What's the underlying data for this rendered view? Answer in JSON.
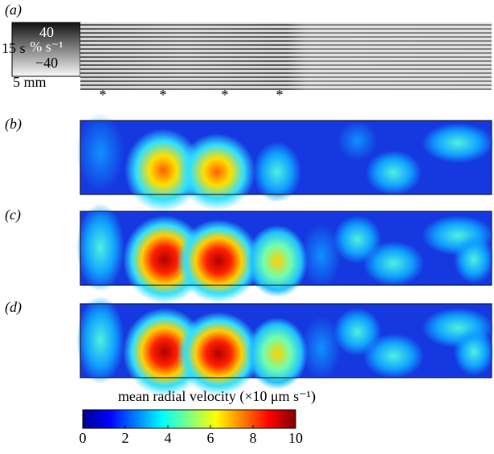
{
  "chart_data": {
    "type": "heatmap",
    "panel_labels": [
      "(a)",
      "(b)",
      "(c)",
      "(d)"
    ],
    "inset": {
      "ticks": [
        40,
        {
          "value": -40,
          "label": "−40"
        }
      ],
      "unit": "% s⁻¹",
      "time_label": "15 s",
      "length_label": "5 mm",
      "markers": [
        "*",
        "*",
        "*",
        "*"
      ]
    },
    "colorbar": {
      "label": "mean radial velocity (×10 μm s⁻¹)",
      "lim": [
        0,
        10
      ],
      "ticks": [
        0,
        2,
        4,
        6,
        8,
        10
      ]
    }
  }
}
